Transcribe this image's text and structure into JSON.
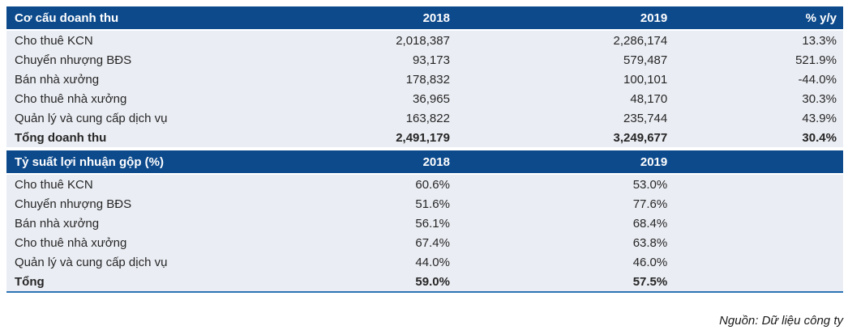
{
  "colors": {
    "header_bg": "#0D4A8C",
    "header_text": "#FFFFFF",
    "row_bg": "#EAEDF3",
    "bottom_rule": "#2E74B5",
    "body_text": "#262626"
  },
  "chart_data": [
    {
      "type": "table",
      "title": "Cơ cấu doanh thu",
      "header": {
        "title": "Cơ cấu doanh thu",
        "columns": [
          "2018",
          "2019",
          "% y/y"
        ]
      },
      "rows": [
        {
          "label": "Cho thuê KCN",
          "values": [
            "2,018,387",
            "2,286,174",
            "13.3%"
          ],
          "is_total": false
        },
        {
          "label": "Chuyển nhượng BĐS",
          "values": [
            "93,173",
            "579,487",
            "521.9%"
          ],
          "is_total": false
        },
        {
          "label": "Bán nhà xưởng",
          "values": [
            "178,832",
            "100,101",
            "-44.0%"
          ],
          "is_total": false
        },
        {
          "label": "Cho thuê nhà xưởng",
          "values": [
            "36,965",
            "48,170",
            "30.3%"
          ],
          "is_total": false
        },
        {
          "label": "Quản lý và cung cấp dịch vụ",
          "values": [
            "163,822",
            "235,744",
            "43.9%"
          ],
          "is_total": false
        },
        {
          "label": "Tổng doanh thu",
          "values": [
            "2,491,179",
            "3,249,677",
            "30.4%"
          ],
          "is_total": true
        }
      ]
    },
    {
      "type": "table",
      "title": "Tỷ suất lợi nhuận gộp (%)",
      "header": {
        "title": "Tỷ suất lợi nhuận gộp (%)",
        "columns": [
          "2018",
          "2019",
          ""
        ]
      },
      "rows": [
        {
          "label": "Cho thuê KCN",
          "values": [
            "60.6%",
            "53.0%",
            ""
          ],
          "is_total": false
        },
        {
          "label": "Chuyển nhượng BĐS",
          "values": [
            "51.6%",
            "77.6%",
            ""
          ],
          "is_total": false
        },
        {
          "label": "Bán nhà xưởng",
          "values": [
            "56.1%",
            "68.4%",
            ""
          ],
          "is_total": false
        },
        {
          "label": "Cho thuê nhà xưởng",
          "values": [
            "67.4%",
            "63.8%",
            ""
          ],
          "is_total": false
        },
        {
          "label": "Quản lý và cung cấp dịch vụ",
          "values": [
            "44.0%",
            "46.0%",
            ""
          ],
          "is_total": false
        },
        {
          "label": "Tổng",
          "values": [
            "59.0%",
            "57.5%",
            ""
          ],
          "is_total": true
        }
      ]
    }
  ],
  "footer": {
    "source_note": "Nguồn: Dữ liệu công ty"
  }
}
